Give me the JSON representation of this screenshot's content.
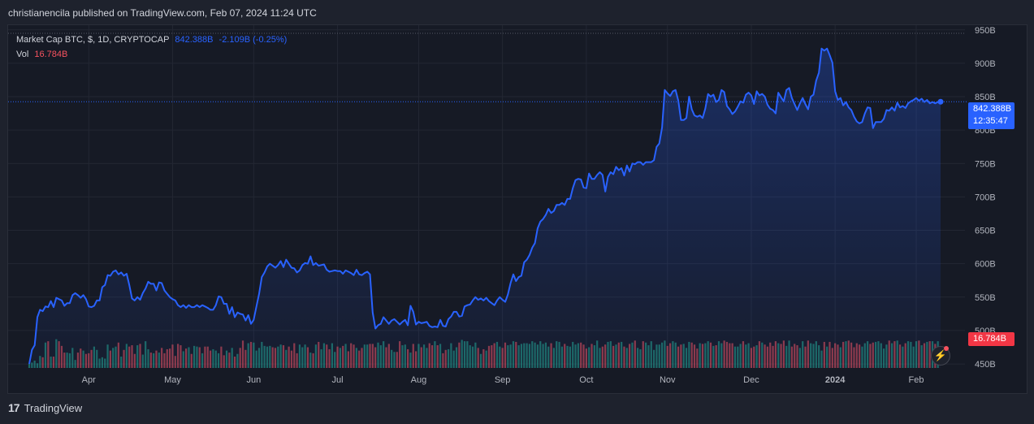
{
  "header": {
    "published": "christianencila published on TradingView.com, Feb 07, 2024 11:24 UTC"
  },
  "legend": {
    "title": "Market Cap BTC, $, 1D, CRYPTOCAP",
    "price": "842.388B",
    "change": "-2.109B (-0.25%)",
    "vol_label": "Vol",
    "vol_value": "16.784B"
  },
  "price_tag": {
    "value": "842.388B",
    "countdown": "12:35:47"
  },
  "vol_tag": {
    "value": "16.784B"
  },
  "footer": {
    "brand": "TradingView"
  },
  "colors": {
    "line": "#2962ff",
    "up": "#22ab94",
    "down": "#f7525f",
    "bg": "#161a25"
  },
  "chart_data": {
    "type": "area",
    "yaxis_ticks": [
      "950B",
      "900B",
      "850B",
      "800B",
      "750B",
      "700B",
      "650B",
      "600B",
      "550B",
      "500B",
      "450B"
    ],
    "yaxis_values": [
      950,
      900,
      850,
      800,
      750,
      700,
      650,
      600,
      550,
      500,
      450
    ],
    "ylim": [
      444,
      957
    ],
    "xaxis_ticks": [
      "Apr",
      "May",
      "Jun",
      "Jul",
      "Aug",
      "Sep",
      "Oct",
      "Nov",
      "Dec",
      "2024",
      "Feb"
    ],
    "last_value": 842.388,
    "series": [
      {
        "values": [
          450,
          471,
          478,
          520,
          531,
          529,
          536,
          535,
          544,
          535,
          549,
          547,
          545,
          537,
          541,
          541,
          553,
          556,
          553,
          549,
          553,
          547,
          536,
          535,
          537,
          545,
          545,
          565,
          568,
          583,
          582,
          588,
          590,
          584,
          587,
          582,
          585,
          568,
          548,
          545,
          550,
          546,
          556,
          563,
          573,
          570,
          570,
          560,
          572,
          571,
          560,
          555,
          550,
          547,
          545,
          538,
          535,
          538,
          534,
          538,
          535,
          535,
          538,
          535,
          538,
          536,
          534,
          531,
          531,
          538,
          551,
          550,
          540,
          540,
          525,
          535,
          520,
          527,
          525,
          524,
          515,
          523,
          510,
          516,
          536,
          555,
          580,
          587,
          596,
          600,
          597,
          594,
          598,
          604,
          595,
          606,
          600,
          594,
          593,
          587,
          590,
          598,
          601,
          600,
          611,
          598,
          601,
          597,
          598,
          599,
          591,
          588,
          589,
          590,
          589,
          589,
          585,
          590,
          588,
          586,
          583,
          591,
          584,
          583,
          586,
          588,
          584,
          527,
          503,
          508,
          510,
          520,
          515,
          510,
          515,
          517,
          513,
          509,
          513,
          516,
          508,
          537,
          528,
          509,
          513,
          511,
          512,
          513,
          507,
          505,
          506,
          505,
          516,
          507,
          506,
          517,
          521,
          528,
          528,
          521,
          522,
          536,
          538,
          539,
          545,
          550,
          546,
          548,
          545,
          549,
          544,
          541,
          538,
          545,
          550,
          546,
          543,
          554,
          571,
          584,
          574,
          580,
          582,
          602,
          606,
          613,
          624,
          631,
          653,
          663,
          667,
          673,
          682,
          676,
          679,
          688,
          688,
          691,
          688,
          697,
          697,
          713,
          725,
          727,
          726,
          714,
          713,
          735,
          727,
          727,
          733,
          737,
          733,
          708,
          730,
          737,
          734,
          745,
          740,
          743,
          732,
          747,
          738,
          750,
          749,
          752,
          752,
          748,
          752,
          752,
          752,
          755,
          775,
          780,
          804,
          860,
          855,
          851,
          858,
          860,
          844,
          815,
          815,
          818,
          850,
          831,
          822,
          820,
          822,
          818,
          832,
          854,
          850,
          853,
          842,
          845,
          860,
          857,
          836,
          831,
          824,
          828,
          835,
          843,
          841,
          853,
          856,
          852,
          839,
          858,
          852,
          854,
          850,
          838,
          832,
          830,
          825,
          856,
          849,
          843,
          860,
          863,
          848,
          839,
          830,
          840,
          848,
          839,
          831,
          850,
          853,
          874,
          886,
          922,
          919,
          922,
          912,
          901,
          858,
          845,
          848,
          837,
          842,
          834,
          830,
          820,
          813,
          810,
          812,
          825,
          834,
          833,
          803,
          812,
          812,
          812,
          817,
          830,
          829,
          834,
          829,
          841,
          834,
          836,
          833,
          840,
          843,
          845,
          848,
          844,
          847,
          842,
          845,
          840,
          842,
          840,
          842,
          842.388
        ]
      }
    ],
    "volume": [
      450,
      452,
      455,
      451,
      462,
      460,
      482,
      484,
      461,
      461,
      487,
      484,
      477,
      467,
      467,
      466,
      474,
      456,
      467,
      473,
      470,
      465,
      466,
      471,
      476,
      471,
      458,
      460,
      458,
      479,
      470,
      474,
      476,
      482,
      461,
      471,
      480,
      476,
      478,
      465,
      478,
      480,
      464,
      484,
      472,
      467,
      466,
      470,
      467,
      474,
      466,
      472,
      473,
      479,
      462,
      480,
      478,
      469,
      473,
      475,
      465,
      477,
      476,
      475,
      466,
      476,
      476,
      470,
      472,
      470,
      466,
      476,
      463,
      470,
      467,
      474,
      461,
      465,
      474,
      485,
      471,
      481,
      483,
      482,
      470,
      474,
      483,
      477,
      476,
      477,
      475,
      474,
      476,
      479,
      478,
      471,
      476,
      470,
      481,
      466,
      479,
      475,
      479,
      475,
      467,
      466,
      479,
      483,
      472,
      481,
      479,
      472,
      481,
      468,
      476,
      474,
      477,
      480,
      469,
      481,
      479,
      474,
      470,
      474,
      479,
      479,
      480,
      480,
      475,
      482,
      478,
      484,
      475,
      480,
      471,
      468,
      468,
      484,
      478,
      479,
      472,
      467,
      480,
      469,
      480,
      475,
      479,
      474,
      481,
      478,
      484,
      478,
      480,
      466,
      471,
      472,
      481,
      470,
      475,
      482,
      486,
      484,
      484,
      478,
      476,
      482,
      474,
      465,
      472,
      470,
      477,
      478,
      481,
      483,
      476,
      474,
      482,
      478,
      479,
      484,
      483,
      478,
      480,
      481,
      481,
      480,
      484,
      482,
      479,
      484,
      480,
      482,
      476,
      481,
      474,
      484,
      483,
      476,
      480,
      477,
      476,
      483,
      479,
      481,
      482,
      479,
      473,
      475,
      480,
      478,
      485,
      474,
      476,
      479,
      483,
      484,
      477,
      479,
      482,
      483,
      476,
      474,
      480,
      482,
      485,
      474,
      472,
      484,
      482,
      478,
      484,
      471,
      479,
      479,
      482,
      485,
      477,
      481,
      484,
      482,
      476,
      479,
      480,
      474,
      483,
      482,
      479,
      473,
      481,
      480,
      481,
      484,
      482,
      477,
      478,
      484,
      481,
      485,
      483,
      481,
      481,
      476,
      476,
      480,
      484,
      479,
      481,
      474,
      476,
      478,
      484,
      482,
      479,
      476,
      482,
      477,
      484,
      481,
      480,
      485,
      477,
      485,
      476,
      480,
      478,
      474,
      484,
      476,
      485,
      481,
      480,
      484,
      478,
      470,
      483,
      476,
      483,
      474,
      481,
      479,
      475,
      483,
      484,
      485,
      482,
      475,
      481,
      479,
      476,
      481,
      484,
      480,
      482,
      483,
      484,
      481,
      473,
      479,
      485,
      481,
      484,
      485,
      479,
      476,
      481,
      484,
      483,
      476,
      484,
      485,
      478,
      481,
      483,
      484,
      484,
      480,
      484
    ]
  }
}
